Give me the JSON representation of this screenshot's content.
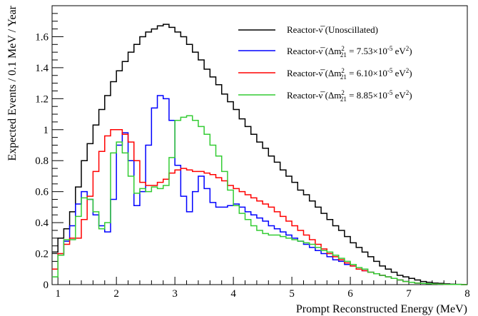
{
  "chart_data": {
    "type": "line",
    "step": true,
    "xlabel": "Prompt Reconstructed Energy (MeV)",
    "ylabel": "Expected Events / 0.1 MeV / Year",
    "xlim": [
      0.9,
      8.0
    ],
    "ylim": [
      0,
      1.8
    ],
    "x_ticks": [
      1,
      2,
      3,
      4,
      5,
      6,
      7,
      8
    ],
    "y_ticks": [
      0,
      0.2,
      0.4,
      0.6,
      0.8,
      1,
      1.2,
      1.4,
      1.6
    ],
    "y_tick_labels": [
      "0",
      "0.2",
      "0.4",
      "0.6",
      "0.8",
      "1",
      "1.2",
      "1.4",
      "1.6"
    ],
    "grid": false,
    "legend_position": "top-right",
    "bin_width": 0.1,
    "x": [
      0.9,
      1.0,
      1.1,
      1.2,
      1.3,
      1.4,
      1.5,
      1.6,
      1.7,
      1.8,
      1.9,
      2.0,
      2.1,
      2.2,
      2.3,
      2.4,
      2.5,
      2.6,
      2.7,
      2.8,
      2.9,
      3.0,
      3.1,
      3.2,
      3.3,
      3.4,
      3.5,
      3.6,
      3.7,
      3.8,
      3.9,
      4.0,
      4.1,
      4.2,
      4.3,
      4.4,
      4.5,
      4.6,
      4.7,
      4.8,
      4.9,
      5.0,
      5.1,
      5.2,
      5.3,
      5.4,
      5.5,
      5.6,
      5.7,
      5.8,
      5.9,
      6.0,
      6.1,
      6.2,
      6.3,
      6.4,
      6.5,
      6.6,
      6.7,
      6.8,
      6.9,
      7.0,
      7.1,
      7.2,
      7.3,
      7.4,
      7.5,
      7.6,
      7.7,
      7.8,
      7.9
    ],
    "series": [
      {
        "name": "Reactor-ν̅ (Unoscillated)",
        "color": "#000000",
        "values": [
          0.21,
          0.3,
          0.36,
          0.47,
          0.63,
          0.8,
          0.91,
          1.03,
          1.13,
          1.22,
          1.31,
          1.38,
          1.44,
          1.5,
          1.55,
          1.6,
          1.63,
          1.65,
          1.67,
          1.68,
          1.66,
          1.63,
          1.6,
          1.55,
          1.5,
          1.45,
          1.39,
          1.34,
          1.29,
          1.23,
          1.18,
          1.13,
          1.07,
          1.02,
          0.97,
          0.92,
          0.88,
          0.83,
          0.79,
          0.74,
          0.7,
          0.66,
          0.61,
          0.58,
          0.54,
          0.5,
          0.46,
          0.42,
          0.38,
          0.35,
          0.31,
          0.27,
          0.24,
          0.21,
          0.18,
          0.15,
          0.12,
          0.1,
          0.08,
          0.06,
          0.05,
          0.04,
          0.03,
          0.02,
          0.015,
          0.01,
          0.008,
          0.005,
          0.003,
          0.002,
          0.001
        ]
      },
      {
        "name": "Reactor-ν̅ (Δm²₂₁ = 7.53×10⁻⁵ eV²)",
        "color": "#0000ff",
        "values": [
          0.1,
          0.19,
          0.28,
          0.38,
          0.52,
          0.6,
          0.55,
          0.45,
          0.38,
          0.34,
          0.55,
          0.9,
          0.98,
          0.8,
          0.51,
          0.6,
          0.9,
          1.14,
          1.22,
          1.2,
          1.06,
          0.77,
          0.57,
          0.47,
          0.6,
          0.7,
          0.62,
          0.53,
          0.5,
          0.5,
          0.51,
          0.52,
          0.5,
          0.47,
          0.45,
          0.43,
          0.41,
          0.38,
          0.36,
          0.34,
          0.32,
          0.3,
          0.28,
          0.26,
          0.24,
          0.22,
          0.2,
          0.18,
          0.16,
          0.15,
          0.13,
          0.12,
          0.1,
          0.09,
          0.08,
          0.07,
          0.06,
          0.05,
          0.04,
          0.03,
          0.02,
          0.015,
          0.01,
          0.008,
          0.006,
          0.004,
          0.003,
          0.002,
          0.001,
          0.001,
          0.0
        ]
      },
      {
        "name": "Reactor-ν̅ (Δm²₂₁ = 6.10×10⁻⁵ eV²)",
        "color": "#ff0000",
        "values": [
          0.1,
          0.2,
          0.26,
          0.3,
          0.3,
          0.42,
          0.57,
          0.73,
          0.86,
          0.96,
          1.0,
          1.0,
          0.97,
          0.92,
          0.8,
          0.66,
          0.64,
          0.64,
          0.66,
          0.68,
          0.72,
          0.74,
          0.75,
          0.74,
          0.73,
          0.73,
          0.72,
          0.71,
          0.69,
          0.67,
          0.64,
          0.62,
          0.6,
          0.58,
          0.56,
          0.54,
          0.52,
          0.5,
          0.47,
          0.44,
          0.41,
          0.38,
          0.35,
          0.32,
          0.29,
          0.26,
          0.23,
          0.2,
          0.18,
          0.16,
          0.14,
          0.12,
          0.1,
          0.09,
          0.08,
          0.07,
          0.06,
          0.05,
          0.04,
          0.03,
          0.02,
          0.015,
          0.01,
          0.008,
          0.006,
          0.004,
          0.003,
          0.002,
          0.001,
          0.001,
          0.0
        ]
      },
      {
        "name": "Reactor-ν̅ (Δm²₂₁ = 8.85×10⁻⁵ eV²)",
        "color": "#33cc33",
        "values": [
          0.05,
          0.19,
          0.29,
          0.29,
          0.44,
          0.56,
          0.55,
          0.47,
          0.36,
          0.4,
          0.85,
          0.92,
          0.85,
          0.7,
          0.59,
          0.62,
          0.6,
          0.63,
          0.62,
          0.64,
          0.82,
          1.06,
          1.08,
          1.09,
          1.06,
          1.02,
          0.97,
          0.9,
          0.83,
          0.73,
          0.61,
          0.51,
          0.46,
          0.42,
          0.38,
          0.35,
          0.33,
          0.32,
          0.32,
          0.31,
          0.3,
          0.29,
          0.28,
          0.27,
          0.26,
          0.24,
          0.22,
          0.21,
          0.19,
          0.17,
          0.15,
          0.13,
          0.11,
          0.1,
          0.08,
          0.07,
          0.06,
          0.05,
          0.04,
          0.03,
          0.02,
          0.015,
          0.01,
          0.008,
          0.006,
          0.004,
          0.003,
          0.002,
          0.001,
          0.001,
          0.0
        ]
      }
    ],
    "legend": [
      {
        "prefix": "Reactor-",
        "nu": "ν",
        "sym": "Δm",
        "sup": "2",
        "sub": "21",
        "eq": " = 7.53×10",
        "exp": "-5",
        "unit": " eV",
        "unit_sup": "2"
      }
    ]
  },
  "legend_text": {
    "unosc": "Reactor-ν̅ (Unoscillated)",
    "blue_prefix": "Reactor-ν̅ (Δm",
    "blue_value": " = 7.53×10",
    "red_value": " = 6.10×10",
    "green_value": " = 8.85×10",
    "sup2": "2",
    "sub21": "21",
    "exp": "-5",
    "unit": " eV",
    "close": ")"
  }
}
